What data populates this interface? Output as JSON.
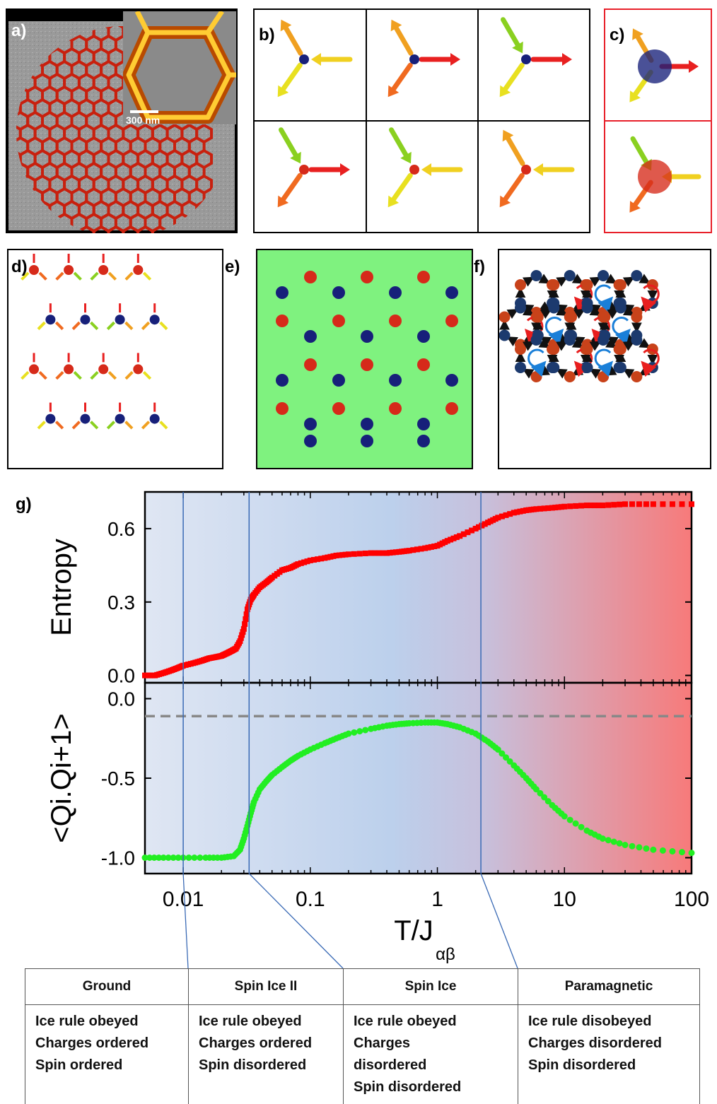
{
  "panel_labels": {
    "a": "a)",
    "b": "b)",
    "c": "c)",
    "d": "d)",
    "e": "e)",
    "f": "f)",
    "g": "g)"
  },
  "panel_a": {
    "scale_bar": "300 nm"
  },
  "colors": {
    "positive_charge": "#d62a1a",
    "negative_charge": "#17207a",
    "panel_e_bg": "#7ff27f",
    "entropy_series": "#ff0000",
    "correlation_series": "#22ee22",
    "reference_line": "#888888",
    "circulation_blue": "#1a7fd8",
    "circulation_red": "#e81e1e"
  },
  "chart_data": [
    {
      "type": "scatter",
      "panel": "g-top",
      "ylabel": "Entropy",
      "xscale": "log",
      "xlim": [
        0.005,
        100
      ],
      "ylim": [
        -0.03,
        0.75
      ],
      "yticks": [
        "0.0",
        "0.3",
        "0.6"
      ],
      "ytick_values": [
        0.0,
        0.3,
        0.6
      ],
      "series": [
        {
          "x": [
            0.005,
            0.006,
            0.007,
            0.008,
            0.009,
            0.01,
            0.012,
            0.014,
            0.016,
            0.018,
            0.02,
            0.022,
            0.024,
            0.026,
            0.028,
            0.03,
            0.032,
            0.034,
            0.036,
            0.04,
            0.045,
            0.05,
            0.06,
            0.07,
            0.08,
            0.1,
            0.13,
            0.16,
            0.2,
            0.3,
            0.4,
            0.5,
            0.6,
            0.8,
            1.0,
            1.2,
            1.5,
            2.0,
            2.5,
            3.0,
            4.0,
            5.0,
            6.0,
            8.0,
            10,
            15,
            20,
            30,
            50,
            100
          ],
          "y": [
            0.0,
            0.0,
            0.01,
            0.02,
            0.03,
            0.04,
            0.05,
            0.06,
            0.07,
            0.075,
            0.08,
            0.09,
            0.1,
            0.11,
            0.14,
            0.19,
            0.27,
            0.31,
            0.33,
            0.36,
            0.38,
            0.4,
            0.43,
            0.44,
            0.455,
            0.47,
            0.48,
            0.49,
            0.495,
            0.5,
            0.5,
            0.505,
            0.51,
            0.52,
            0.53,
            0.55,
            0.57,
            0.6,
            0.625,
            0.645,
            0.665,
            0.675,
            0.68,
            0.685,
            0.69,
            0.695,
            0.695,
            0.7,
            0.7,
            0.7
          ]
        }
      ]
    },
    {
      "type": "scatter",
      "panel": "g-bottom",
      "ylabel": "<Qi.Qi+1>",
      "xlabel": "T/J",
      "xlabel_subscript": "αβ",
      "xscale": "log",
      "xlim": [
        0.005,
        100
      ],
      "ylim": [
        -1.1,
        0.1
      ],
      "yticks": [
        "0.0",
        "-0.5",
        "-1.0"
      ],
      "ytick_values": [
        0.0,
        -0.5,
        -1.0
      ],
      "xticks": [
        "0.01",
        "0.1",
        "1",
        "10",
        "100"
      ],
      "xtick_values": [
        0.01,
        0.1,
        1,
        10,
        100
      ],
      "reference_line_y": -0.11,
      "series": [
        {
          "x": [
            0.005,
            0.007,
            0.01,
            0.015,
            0.02,
            0.025,
            0.028,
            0.03,
            0.032,
            0.034,
            0.036,
            0.04,
            0.045,
            0.05,
            0.06,
            0.07,
            0.08,
            0.1,
            0.13,
            0.16,
            0.2,
            0.3,
            0.4,
            0.5,
            0.6,
            0.8,
            1.0,
            1.2,
            1.5,
            2.0,
            2.5,
            3.0,
            4.0,
            5.0,
            6.0,
            8.0,
            10,
            15,
            20,
            30,
            50,
            100
          ],
          "y": [
            -1.0,
            -1.0,
            -1.0,
            -1.0,
            -1.0,
            -0.99,
            -0.95,
            -0.88,
            -0.8,
            -0.72,
            -0.65,
            -0.57,
            -0.52,
            -0.48,
            -0.43,
            -0.39,
            -0.36,
            -0.32,
            -0.28,
            -0.25,
            -0.22,
            -0.19,
            -0.17,
            -0.16,
            -0.155,
            -0.15,
            -0.15,
            -0.16,
            -0.18,
            -0.22,
            -0.27,
            -0.32,
            -0.42,
            -0.5,
            -0.57,
            -0.67,
            -0.74,
            -0.83,
            -0.88,
            -0.92,
            -0.95,
            -0.97
          ]
        }
      ]
    }
  ],
  "phase_table": [
    {
      "header": "Ground",
      "lines": [
        "Ice rule obeyed",
        "Charges ordered",
        "Spin ordered"
      ]
    },
    {
      "header": "Spin Ice II",
      "lines": [
        "Ice rule obeyed",
        "Charges ordered",
        "Spin disordered"
      ]
    },
    {
      "header": "Spin Ice",
      "lines": [
        "Ice rule obeyed",
        "Charges",
        "disordered",
        "Spin disordered"
      ]
    },
    {
      "header": "Paramagnetic",
      "lines": [
        "Ice rule disobeyed",
        "Charges disordered",
        "Spin disordered"
      ]
    }
  ],
  "phase_boundaries_T": [
    0.01,
    0.033,
    2.2
  ]
}
